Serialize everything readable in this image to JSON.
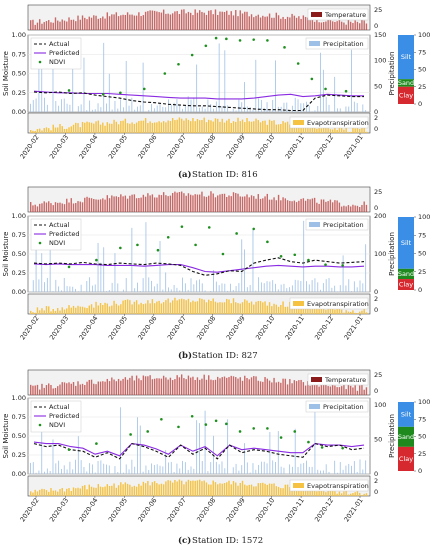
{
  "colors": {
    "temperature": "#c0504d",
    "temperature_legend": "#8b1a1a",
    "precipitation": "#9fc0e6",
    "evapotranspiration": "#f5c242",
    "actual": "#111111",
    "predicted": "#8a2be2",
    "ndvi": "#1f8f1f",
    "silt": "#3a8ee6",
    "sand": "#1e8a1e",
    "clay": "#d6282f",
    "panel_bg": "#f2f2f2"
  },
  "months": [
    "2020-02",
    "2020-03",
    "2020-04",
    "2020-05",
    "2020-06",
    "2020-07",
    "2020-08",
    "2020-09",
    "2020-10",
    "2020-11",
    "2020-12",
    "2021-01"
  ],
  "chart_data": [
    {
      "type": "line",
      "caption_label": "(a)",
      "caption_text": "Station ID: 816",
      "ylabel": "Soil Moisture",
      "y2label": "Precipitation",
      "ylim": [
        0,
        1.0
      ],
      "yticks": [
        "0.00",
        "0.25",
        "0.50",
        "0.75",
        "1.00"
      ],
      "temp_ticks": [
        "25",
        "0"
      ],
      "precip_ticks": [
        "0",
        "50",
        "100",
        "150"
      ],
      "precip_max": 150,
      "evap_ticks": [
        "2",
        "0"
      ],
      "legend": [
        "Actual",
        "Predicted",
        "NDVI"
      ],
      "legend_right": [
        "Temperature",
        "Precipitation",
        "Evapotranspiration"
      ],
      "soil": {
        "silt": 64,
        "sand": 11,
        "clay": 25
      },
      "soil_ticks": [
        "0",
        "25",
        "50",
        "75",
        "100"
      ],
      "soil_labels": [
        "Silt",
        "Sand",
        "Clay"
      ],
      "actual": [
        0.26,
        0.25,
        0.26,
        0.24,
        0.25,
        0.22,
        0.2,
        0.18,
        0.15,
        0.13,
        0.12,
        0.1,
        0.09,
        0.08,
        0.08,
        0.07,
        0.06,
        0.05,
        0.04,
        0.03,
        0.03,
        0.02,
        0.02,
        0.18,
        0.22,
        0.21,
        0.2,
        0.2
      ],
      "predicted": [
        0.27,
        0.26,
        0.25,
        0.25,
        0.24,
        0.24,
        0.24,
        0.23,
        0.22,
        0.21,
        0.2,
        0.19,
        0.18,
        0.18,
        0.18,
        0.17,
        0.17,
        0.17,
        0.18,
        0.2,
        0.22,
        0.23,
        0.2,
        0.21,
        0.23,
        0.22,
        0.21,
        0.21
      ],
      "ndvi": [
        [
          0.12,
          0.28
        ],
        [
          0.22,
          0.23
        ],
        [
          0.27,
          0.25
        ],
        [
          0.34,
          0.3
        ],
        [
          0.4,
          0.5
        ],
        [
          0.44,
          0.62
        ],
        [
          0.48,
          0.74
        ],
        [
          0.52,
          0.86
        ],
        [
          0.55,
          0.96
        ],
        [
          0.58,
          0.95
        ],
        [
          0.62,
          0.93
        ],
        [
          0.66,
          0.94
        ],
        [
          0.7,
          0.93
        ],
        [
          0.75,
          0.84
        ],
        [
          0.79,
          0.63
        ],
        [
          0.83,
          0.43
        ],
        [
          0.87,
          0.3
        ],
        [
          0.93,
          0.27
        ]
      ]
    },
    {
      "type": "line",
      "caption_label": "(b)",
      "caption_text": "Station ID: 827",
      "ylabel": "Soil Moisture",
      "y2label": "Precipitation",
      "ylim": [
        0,
        1.0
      ],
      "yticks": [
        "0.00",
        "0.25",
        "0.50",
        "0.75",
        "1.00"
      ],
      "temp_ticks": [
        "25",
        "0"
      ],
      "precip_ticks": [
        "0",
        "100",
        "200"
      ],
      "precip_max": 200,
      "evap_ticks": [
        "2",
        "0"
      ],
      "legend": [
        "Actual",
        "Predicted",
        "NDVI"
      ],
      "legend_right": [
        "Precipitation",
        "Evapotranspiration"
      ],
      "soil": {
        "silt": 71,
        "sand": 14,
        "clay": 15
      },
      "soil_ticks": [
        "0",
        "25",
        "50",
        "75",
        "100"
      ],
      "soil_labels": [
        "Silt",
        "Sand",
        "Clay"
      ],
      "actual": [
        0.38,
        0.37,
        0.38,
        0.37,
        0.39,
        0.37,
        0.36,
        0.38,
        0.37,
        0.36,
        0.38,
        0.37,
        0.35,
        0.27,
        0.22,
        0.24,
        0.28,
        0.27,
        0.38,
        0.42,
        0.45,
        0.4,
        0.38,
        0.42,
        0.4,
        0.38,
        0.39,
        0.4
      ],
      "predicted": [
        0.37,
        0.36,
        0.37,
        0.36,
        0.36,
        0.36,
        0.35,
        0.35,
        0.35,
        0.34,
        0.35,
        0.36,
        0.36,
        0.32,
        0.27,
        0.26,
        0.28,
        0.3,
        0.32,
        0.34,
        0.35,
        0.34,
        0.33,
        0.34,
        0.34,
        0.33,
        0.33,
        0.34
      ],
      "ndvi": [
        [
          0.12,
          0.33
        ],
        [
          0.2,
          0.42
        ],
        [
          0.27,
          0.58
        ],
        [
          0.32,
          0.62
        ],
        [
          0.38,
          0.55
        ],
        [
          0.41,
          0.72
        ],
        [
          0.45,
          0.86
        ],
        [
          0.49,
          0.62
        ],
        [
          0.53,
          0.85
        ],
        [
          0.57,
          0.5
        ],
        [
          0.61,
          0.77
        ],
        [
          0.66,
          0.83
        ],
        [
          0.7,
          0.66
        ],
        [
          0.74,
          0.47
        ],
        [
          0.78,
          0.49
        ],
        [
          0.82,
          0.42
        ],
        [
          0.87,
          0.36
        ],
        [
          0.92,
          0.35
        ]
      ]
    },
    {
      "type": "line",
      "caption_label": "(c)",
      "caption_text": "Station ID: 1572",
      "ylabel": "Soil Moisture",
      "y2label": "Precipitation",
      "ylim": [
        0,
        1.0
      ],
      "yticks": [
        "0.00",
        "0.25",
        "0.50",
        "0.75",
        "1.00"
      ],
      "temp_ticks": [
        "25",
        "0"
      ],
      "precip_ticks": [
        "0",
        "50",
        "100"
      ],
      "precip_max": 110,
      "evap_ticks": [
        "2",
        "0"
      ],
      "legend": [
        "Actual",
        "Predicted",
        "NDVI"
      ],
      "legend_right": [
        "Temperature",
        "Precipitation",
        "Evapotranspiration"
      ],
      "soil": {
        "silt": 36,
        "sand": 29,
        "clay": 35
      },
      "soil_ticks": [
        "0",
        "25",
        "50",
        "75",
        "100"
      ],
      "soil_labels": [
        "Silt",
        "Sand",
        "Clay"
      ],
      "actual": [
        0.4,
        0.36,
        0.38,
        0.32,
        0.3,
        0.22,
        0.28,
        0.2,
        0.4,
        0.36,
        0.3,
        0.22,
        0.38,
        0.26,
        0.34,
        0.2,
        0.38,
        0.28,
        0.32,
        0.3,
        0.26,
        0.24,
        0.22,
        0.4,
        0.36,
        0.38,
        0.32,
        0.34
      ],
      "predicted": [
        0.42,
        0.4,
        0.4,
        0.36,
        0.34,
        0.26,
        0.3,
        0.24,
        0.4,
        0.38,
        0.33,
        0.26,
        0.38,
        0.3,
        0.36,
        0.24,
        0.38,
        0.32,
        0.34,
        0.32,
        0.3,
        0.28,
        0.28,
        0.4,
        0.38,
        0.38,
        0.36,
        0.38
      ],
      "ndvi": [
        [
          0.12,
          0.32
        ],
        [
          0.2,
          0.4
        ],
        [
          0.3,
          0.52
        ],
        [
          0.35,
          0.56
        ],
        [
          0.39,
          0.72
        ],
        [
          0.44,
          0.62
        ],
        [
          0.48,
          0.76
        ],
        [
          0.52,
          0.65
        ],
        [
          0.55,
          0.7
        ],
        [
          0.58,
          0.66
        ],
        [
          0.62,
          0.56
        ],
        [
          0.66,
          0.6
        ],
        [
          0.7,
          0.6
        ],
        [
          0.74,
          0.48
        ],
        [
          0.78,
          0.56
        ],
        [
          0.82,
          0.42
        ],
        [
          0.86,
          0.35
        ],
        [
          0.92,
          0.34
        ]
      ]
    }
  ]
}
